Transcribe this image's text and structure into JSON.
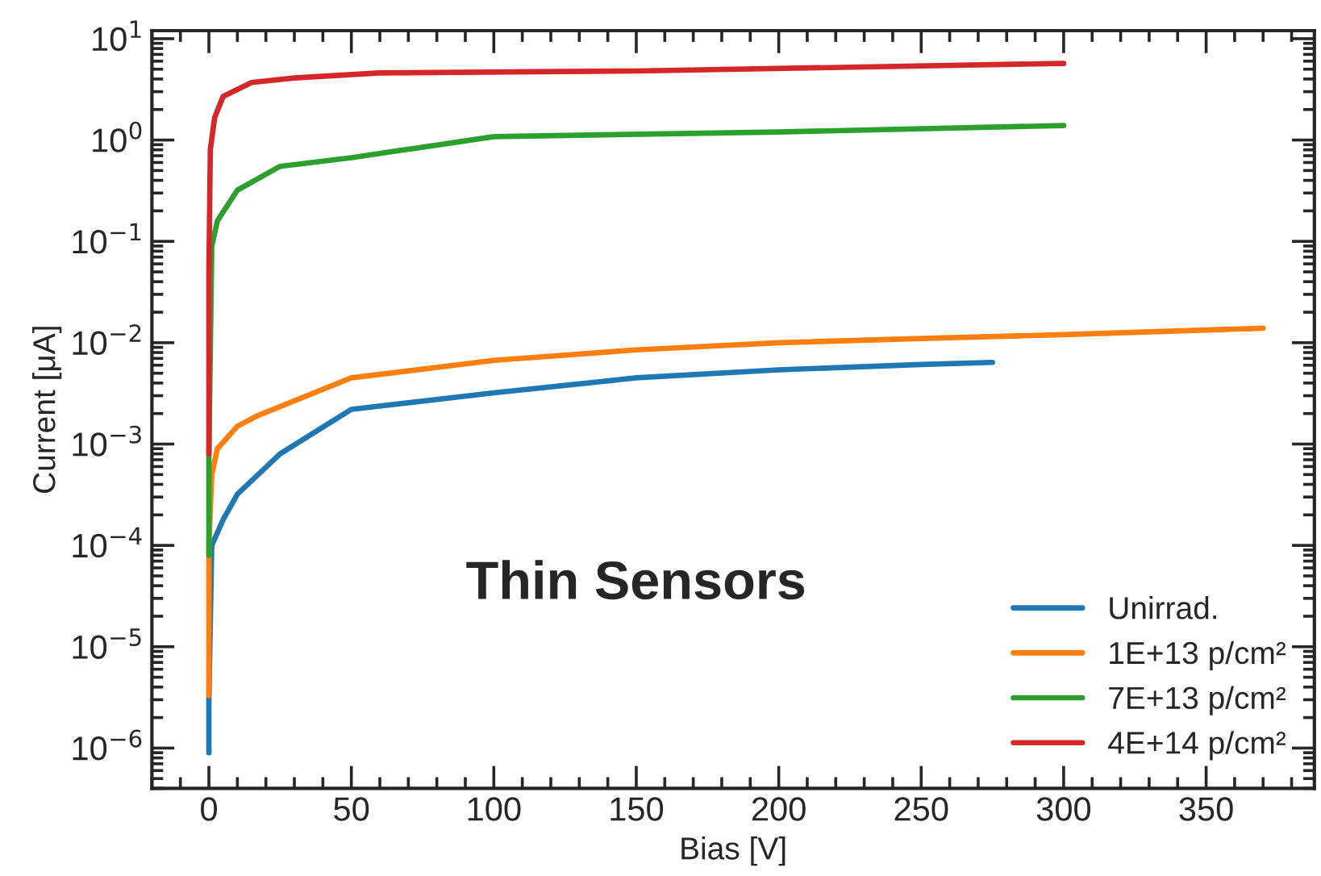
{
  "chart_data": {
    "type": "line",
    "xlabel": "Bias [V]",
    "ylabel": "Current [μA]",
    "log": "y",
    "xlim": [
      -20,
      388
    ],
    "xticks": [
      0,
      50,
      100,
      150,
      200,
      250,
      300,
      350
    ],
    "ylim": [
      4e-07,
      12
    ],
    "yticks": [
      {
        "value": 1e-06,
        "label": "10$^{−6}$"
      },
      {
        "value": 1e-05,
        "label": "10$^{−5}$"
      },
      {
        "value": 0.0001,
        "label": "10$^{−4}$"
      },
      {
        "value": 0.001,
        "label": "10$^{−3}$"
      },
      {
        "value": 0.01,
        "label": "10$^{−2}$"
      },
      {
        "value": 0.1,
        "label": "10$^{−1}$"
      },
      {
        "value": 1,
        "label": "10$^{0}$"
      },
      {
        "value": 10,
        "label": "10$^{1}$"
      }
    ],
    "grid": false,
    "legend": "bottom right",
    "line_style": "solid",
    "marker": "none",
    "annotations": [
      "Thin Sensors"
    ],
    "series": [
      {
        "name": "Unirrad.",
        "color": "#1f77b4",
        "x": [
          0,
          0,
          1,
          5,
          10,
          25,
          50,
          100,
          150,
          200,
          250,
          275
        ],
        "values": [
          9e-07,
          3e-06,
          0.0001,
          0.00018,
          0.00032,
          0.0008,
          0.0022,
          0.0032,
          0.0045,
          0.0054,
          0.0061,
          0.0064
        ]
      },
      {
        "name": "1E+13 p/cm²",
        "color": "#ff7f0e",
        "x": [
          0,
          0,
          1,
          3,
          10,
          17,
          50,
          100,
          150,
          200,
          250,
          300,
          370
        ],
        "values": [
          3.3e-06,
          0.0001,
          0.0005,
          0.0009,
          0.0015,
          0.0019,
          0.0045,
          0.0067,
          0.0085,
          0.01,
          0.011,
          0.012,
          0.0139
        ]
      },
      {
        "name": "7E+13 p/cm²",
        "color": "#2ca02c",
        "x": [
          0,
          0,
          1,
          3,
          10,
          25,
          50,
          100,
          200,
          300
        ],
        "values": [
          8e-05,
          0.0008,
          0.09,
          0.16,
          0.32,
          0.55,
          0.67,
          1.08,
          1.2,
          1.39
        ]
      },
      {
        "name": "4E+14 p/cm²",
        "color": "#d62728",
        "x": [
          0,
          0,
          0.5,
          2,
          5,
          15,
          30,
          60,
          150,
          300
        ],
        "values": [
          0.0008,
          0.05,
          0.8,
          1.66,
          2.7,
          3.7,
          4.1,
          4.6,
          4.8,
          5.7
        ]
      }
    ]
  }
}
